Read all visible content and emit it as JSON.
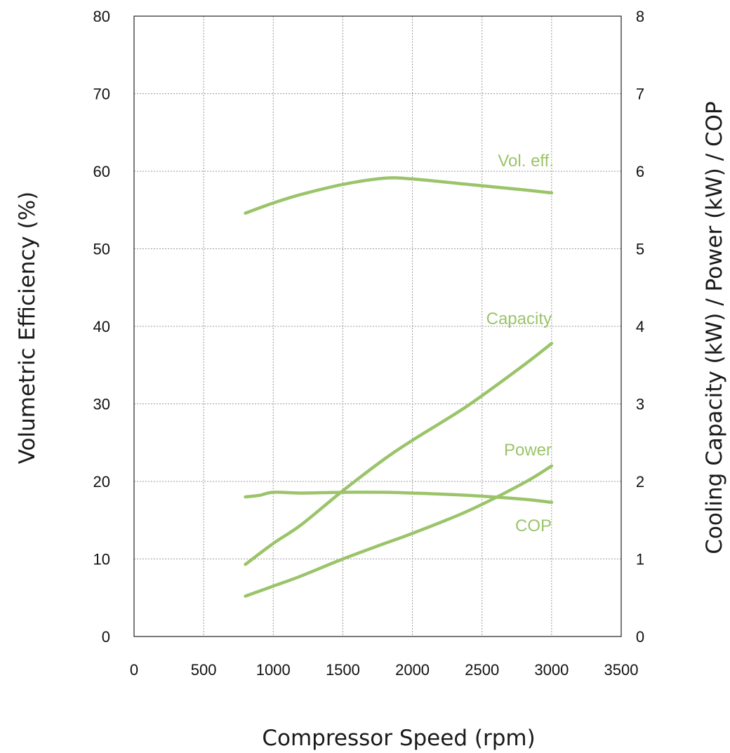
{
  "chart_data": {
    "type": "line",
    "xlabel": "Compressor Speed (rpm)",
    "ylabel": "Volumetric Efficiency (%)",
    "y2label": "Cooling Capacity (kW) / Power (kW) / COP",
    "xlim": [
      0,
      3500
    ],
    "ylim": [
      0,
      80
    ],
    "y2lim": [
      0,
      8
    ],
    "x_ticks": [
      0,
      500,
      1000,
      1500,
      2000,
      2500,
      3000,
      3500
    ],
    "y_ticks": [
      0,
      10,
      20,
      30,
      40,
      50,
      60,
      70,
      80
    ],
    "y2_ticks": [
      0,
      1,
      2,
      3,
      4,
      5,
      6,
      7,
      8
    ],
    "grid": true,
    "line_color": "#9bc46a",
    "series": [
      {
        "name": "Vol. eff.",
        "axis": "left",
        "x": [
          800,
          1000,
          1200,
          1500,
          1800,
          2000,
          2400,
          2800,
          3000
        ],
        "y": [
          54.6,
          55.9,
          57.0,
          58.3,
          59.1,
          59.0,
          58.3,
          57.6,
          57.2
        ]
      },
      {
        "name": "Capacity",
        "axis": "right",
        "x": [
          800,
          1000,
          1200,
          1500,
          1800,
          2000,
          2400,
          2800,
          3000
        ],
        "y": [
          0.93,
          1.2,
          1.44,
          1.88,
          2.29,
          2.53,
          2.98,
          3.5,
          3.78
        ]
      },
      {
        "name": "Power",
        "axis": "right",
        "x": [
          800,
          1000,
          1200,
          1500,
          1800,
          2000,
          2400,
          2800,
          3000
        ],
        "y": [
          0.52,
          0.65,
          0.78,
          1.0,
          1.2,
          1.33,
          1.62,
          1.98,
          2.2
        ]
      },
      {
        "name": "COP",
        "axis": "right",
        "x": [
          800,
          900,
          1000,
          1200,
          1500,
          1800,
          2000,
          2400,
          2800,
          3000
        ],
        "y": [
          1.8,
          1.82,
          1.86,
          1.85,
          1.86,
          1.86,
          1.85,
          1.82,
          1.77,
          1.73
        ]
      }
    ]
  }
}
